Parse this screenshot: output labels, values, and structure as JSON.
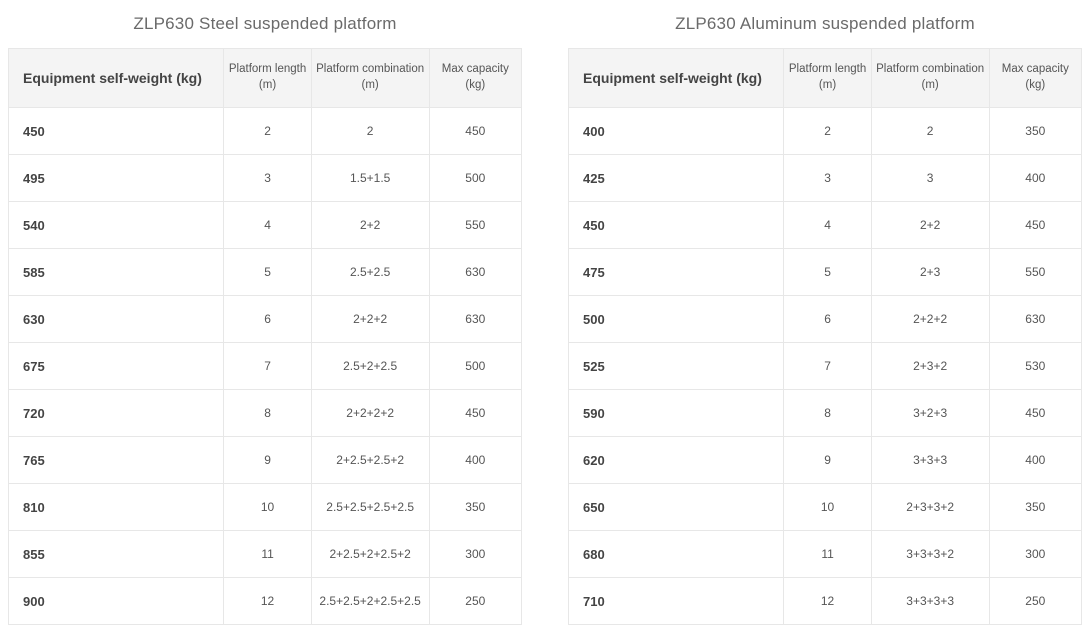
{
  "tables": [
    {
      "title": "ZLP630 Steel suspended platform",
      "headers": [
        "Equipment self-weight (kg)",
        "Platform length  (m)",
        "Platform combination (m)",
        "Max capacity (kg)"
      ],
      "rows": [
        [
          "450",
          "2",
          "2",
          "450"
        ],
        [
          "495",
          "3",
          "1.5+1.5",
          "500"
        ],
        [
          "540",
          "4",
          "2+2",
          "550"
        ],
        [
          "585",
          "5",
          "2.5+2.5",
          "630"
        ],
        [
          "630",
          "6",
          "2+2+2",
          "630"
        ],
        [
          "675",
          "7",
          "2.5+2+2.5",
          "500"
        ],
        [
          "720",
          "8",
          "2+2+2+2",
          "450"
        ],
        [
          "765",
          "9",
          "2+2.5+2.5+2",
          "400"
        ],
        [
          "810",
          "10",
          "2.5+2.5+2.5+2.5",
          "350"
        ],
        [
          "855",
          "11",
          "2+2.5+2+2.5+2",
          "300"
        ],
        [
          "900",
          "12",
          "2.5+2.5+2+2.5+2.5",
          "250"
        ]
      ]
    },
    {
      "title": "ZLP630 Aluminum suspended platform",
      "headers": [
        "Equipment self-weight (kg)",
        "Platform length  (m)",
        "Platform combination (m)",
        "Max capacity (kg)"
      ],
      "rows": [
        [
          "400",
          "2",
          "2",
          "350"
        ],
        [
          "425",
          "3",
          "3",
          "400"
        ],
        [
          "450",
          "4",
          "2+2",
          "450"
        ],
        [
          "475",
          "5",
          "2+3",
          "550"
        ],
        [
          "500",
          "6",
          "2+2+2",
          "630"
        ],
        [
          "525",
          "7",
          "2+3+2",
          "530"
        ],
        [
          "590",
          "8",
          "3+2+3",
          "450"
        ],
        [
          "620",
          "9",
          "3+3+3",
          "400"
        ],
        [
          "650",
          "10",
          "2+3+3+2",
          "350"
        ],
        [
          "680",
          "11",
          "3+3+3+2",
          "300"
        ],
        [
          "710",
          "12",
          "3+3+3+3",
          "250"
        ]
      ]
    }
  ]
}
